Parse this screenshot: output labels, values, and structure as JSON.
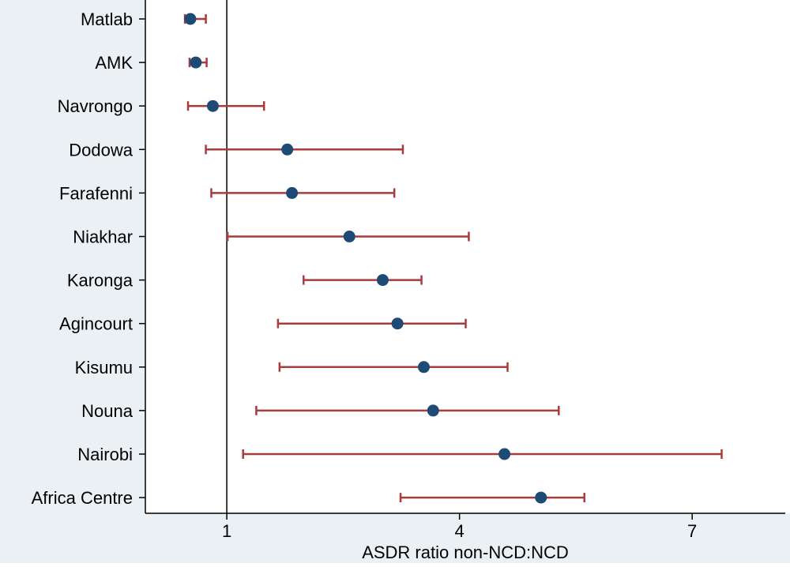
{
  "chart_data": {
    "type": "forest",
    "xlabel": "ASDR ratio non-NCD:NCD",
    "xlim": [
      -0.05,
      8.2
    ],
    "x_ticks": [
      1,
      4,
      7
    ],
    "reference_line_x": 1,
    "grid": false,
    "categories": [
      "Matlab",
      "AMK",
      "Navrongo",
      "Dodowa",
      "Farafenni",
      "Niakhar",
      "Karonga",
      "Agincourt",
      "Kisumu",
      "Nouna",
      "Nairobi",
      "Africa Centre"
    ],
    "estimates": [
      0.53,
      0.6,
      0.82,
      1.78,
      1.84,
      2.58,
      3.01,
      3.2,
      3.54,
      3.66,
      4.58,
      5.05
    ],
    "lower": [
      0.46,
      0.52,
      0.5,
      0.73,
      0.8,
      1.01,
      1.99,
      1.66,
      1.68,
      1.38,
      1.21,
      3.24
    ],
    "upper": [
      0.73,
      0.74,
      1.48,
      3.27,
      3.16,
      4.12,
      3.51,
      4.08,
      4.62,
      5.28,
      7.38,
      5.61
    ]
  },
  "colors": {
    "label_panel": "#eaf0f3",
    "marker": "#1d4b75",
    "ci_line": "#a83c3c",
    "axis": "#000000"
  }
}
